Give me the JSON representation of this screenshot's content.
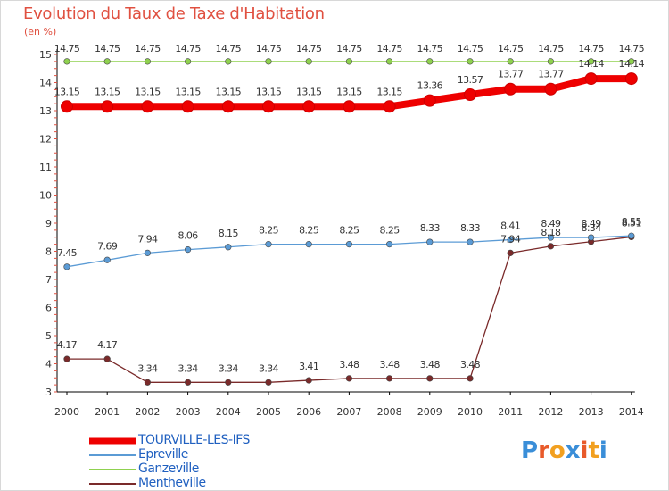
{
  "title": "Evolution du Taux de Taxe d'Habitation",
  "unit_label": "(en %)",
  "logo": {
    "text": "Proxiti",
    "colors": [
      "#3a8ed8",
      "#e85a2a",
      "#f2a020",
      "#3a8ed8",
      "#e85a2a",
      "#f2a020",
      "#3a8ed8"
    ]
  },
  "chart_data": {
    "type": "line",
    "title": "Evolution du Taux de Taxe d'Habitation",
    "ylabel": "(en %)",
    "xlabel": "",
    "ylim": [
      3,
      15
    ],
    "yticks": [
      3,
      4,
      5,
      6,
      7,
      8,
      9,
      10,
      11,
      12,
      13,
      14,
      15
    ],
    "x": [
      "2000",
      "2001",
      "2002",
      "2003",
      "2004",
      "2005",
      "2006",
      "2007",
      "2008",
      "2009",
      "2010",
      "2011",
      "2012",
      "2013",
      "2014"
    ],
    "series": [
      {
        "name": "TOURVILLE-LES-IFS",
        "color": "#ee0000",
        "values": [
          13.15,
          13.15,
          13.15,
          13.15,
          13.15,
          13.15,
          13.15,
          13.15,
          13.15,
          13.36,
          13.57,
          13.77,
          13.77,
          14.14,
          14.14
        ],
        "labels": [
          "13.15",
          "13.15",
          "13.15",
          "13.15",
          "13.15",
          "13.15",
          "13.15",
          "13.15",
          "13.15",
          "13.36",
          "13.57",
          "13.77",
          "13.77",
          "14.14",
          "14.14"
        ]
      },
      {
        "name": "Epreville",
        "color": "#5b9bd5",
        "values": [
          7.45,
          7.69,
          7.94,
          8.06,
          8.15,
          8.25,
          8.25,
          8.25,
          8.25,
          8.33,
          8.33,
          8.41,
          8.49,
          8.49,
          8.55
        ],
        "labels": [
          "7.45",
          "7.69",
          "7.94",
          "8.06",
          "8.15",
          "8.25",
          "8.25",
          "8.25",
          "8.25",
          "8.33",
          "8.33",
          "8.41",
          "8.49",
          "8.49",
          "8.55"
        ]
      },
      {
        "name": "Ganzeville",
        "color": "#8fd14f",
        "values": [
          14.75,
          14.75,
          14.75,
          14.75,
          14.75,
          14.75,
          14.75,
          14.75,
          14.75,
          14.75,
          14.75,
          14.75,
          14.75,
          14.75,
          14.75
        ],
        "labels": [
          "14.75",
          "14.75",
          "14.75",
          "14.75",
          "14.75",
          "14.75",
          "14.75",
          "14.75",
          "14.75",
          "14.75",
          "14.75",
          "14.75",
          "14.75",
          "14.75",
          "14.75"
        ]
      },
      {
        "name": "Mentheville",
        "color": "#7a2a2a",
        "values": [
          4.17,
          4.17,
          3.34,
          3.34,
          3.34,
          3.34,
          3.41,
          3.48,
          3.48,
          3.48,
          3.48,
          7.94,
          8.18,
          8.34,
          8.51
        ],
        "labels": [
          "4.17",
          "4.17",
          "3.34",
          "3.34",
          "3.34",
          "3.34",
          "3.41",
          "3.48",
          "3.48",
          "3.48",
          "3.48",
          "7.94",
          "8.18",
          "8.34",
          "8.51"
        ]
      }
    ],
    "legend_position": "bottom-left",
    "grid": false
  }
}
